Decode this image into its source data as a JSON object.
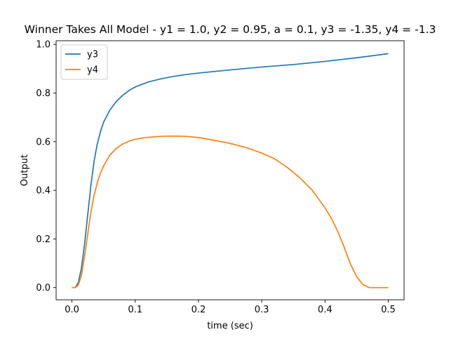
{
  "chart_data": {
    "type": "line",
    "title": "Winner Takes All Model - y1 = 1.0, y2 = 0.95, a = 0.1, y3 = -1.35, y4 = -1.3",
    "xlabel": "time (sec)",
    "ylabel": "Output",
    "xlim": [
      -0.025,
      0.525
    ],
    "ylim": [
      -0.05,
      1.015
    ],
    "xticks": [
      0.0,
      0.1,
      0.2,
      0.3,
      0.4,
      0.5
    ],
    "xtick_labels": [
      "0.0",
      "0.1",
      "0.2",
      "0.3",
      "0.4",
      "0.5"
    ],
    "yticks": [
      0.0,
      0.2,
      0.4,
      0.6,
      0.8,
      1.0
    ],
    "ytick_labels": [
      "0.0",
      "0.2",
      "0.4",
      "0.6",
      "0.8",
      "1.0"
    ],
    "grid": false,
    "legend_position": "top-left",
    "series": [
      {
        "name": "y3",
        "color": "#1f77b4",
        "points": [
          [
            0.0,
            0.0
          ],
          [
            0.005,
            0.0
          ],
          [
            0.01,
            0.02
          ],
          [
            0.015,
            0.08
          ],
          [
            0.02,
            0.18
          ],
          [
            0.025,
            0.3
          ],
          [
            0.03,
            0.42
          ],
          [
            0.035,
            0.52
          ],
          [
            0.04,
            0.59
          ],
          [
            0.045,
            0.64
          ],
          [
            0.05,
            0.68
          ],
          [
            0.06,
            0.73
          ],
          [
            0.07,
            0.765
          ],
          [
            0.08,
            0.79
          ],
          [
            0.09,
            0.81
          ],
          [
            0.1,
            0.825
          ],
          [
            0.12,
            0.845
          ],
          [
            0.14,
            0.858
          ],
          [
            0.16,
            0.868
          ],
          [
            0.18,
            0.876
          ],
          [
            0.2,
            0.882
          ],
          [
            0.25,
            0.895
          ],
          [
            0.3,
            0.907
          ],
          [
            0.35,
            0.917
          ],
          [
            0.4,
            0.93
          ],
          [
            0.45,
            0.945
          ],
          [
            0.48,
            0.955
          ],
          [
            0.5,
            0.962
          ]
        ]
      },
      {
        "name": "y4",
        "color": "#ff7f0e",
        "points": [
          [
            0.0,
            0.0
          ],
          [
            0.005,
            0.0
          ],
          [
            0.01,
            0.01
          ],
          [
            0.015,
            0.05
          ],
          [
            0.02,
            0.13
          ],
          [
            0.025,
            0.22
          ],
          [
            0.03,
            0.31
          ],
          [
            0.035,
            0.38
          ],
          [
            0.04,
            0.43
          ],
          [
            0.045,
            0.47
          ],
          [
            0.05,
            0.5
          ],
          [
            0.06,
            0.545
          ],
          [
            0.07,
            0.572
          ],
          [
            0.08,
            0.59
          ],
          [
            0.09,
            0.602
          ],
          [
            0.1,
            0.61
          ],
          [
            0.12,
            0.618
          ],
          [
            0.14,
            0.622
          ],
          [
            0.16,
            0.623
          ],
          [
            0.18,
            0.622
          ],
          [
            0.2,
            0.617
          ],
          [
            0.22,
            0.608
          ],
          [
            0.25,
            0.593
          ],
          [
            0.28,
            0.572
          ],
          [
            0.3,
            0.553
          ],
          [
            0.32,
            0.53
          ],
          [
            0.34,
            0.495
          ],
          [
            0.36,
            0.452
          ],
          [
            0.38,
            0.4
          ],
          [
            0.4,
            0.328
          ],
          [
            0.41,
            0.285
          ],
          [
            0.42,
            0.232
          ],
          [
            0.43,
            0.168
          ],
          [
            0.44,
            0.098
          ],
          [
            0.45,
            0.045
          ],
          [
            0.46,
            0.012
          ],
          [
            0.47,
            0.0
          ],
          [
            0.48,
            0.0
          ],
          [
            0.5,
            0.0
          ]
        ]
      }
    ]
  }
}
